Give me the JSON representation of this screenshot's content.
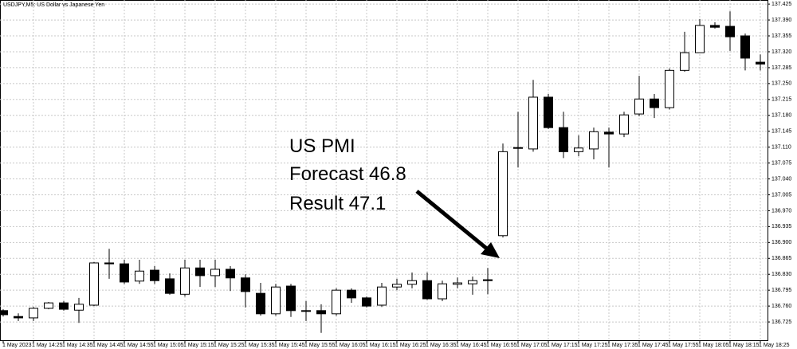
{
  "chart_data": {
    "type": "candlestick",
    "title": "USDJPY,M5:  US Dollar vs Japanese Yen",
    "categories": [
      "1 May 2023",
      null,
      "1 May 14:25",
      null,
      "1 May 14:35",
      null,
      "1 May 14:45",
      null,
      "1 May 14:55",
      null,
      "1 May 15:05",
      null,
      "1 May 15:15",
      null,
      "1 May 15:25",
      null,
      "1 May 15:35",
      null,
      "1 May 15:45",
      null,
      "1 May 15:55",
      null,
      "1 May 16:05",
      null,
      "1 May 16:15",
      null,
      "1 May 16:25",
      null,
      "1 May 16:35",
      null,
      "1 May 16:45",
      null,
      "1 May 16:55",
      null,
      "1 May 17:05",
      null,
      "1 May 17:15",
      null,
      "1 May 17:25",
      null,
      "1 May 17:35",
      null,
      "1 May 17:45",
      null,
      "1 May 17:55",
      null,
      "1 May 18:05",
      null,
      "1 May 18:15",
      null,
      "1 May 18:25"
    ],
    "open": [
      136.75,
      136.737,
      136.734,
      136.755,
      136.767,
      136.751,
      136.762,
      136.855,
      136.853,
      136.815,
      136.839,
      136.82,
      136.786,
      136.844,
      136.827,
      136.841,
      136.822,
      136.788,
      136.743,
      136.804,
      136.75,
      136.75,
      136.743,
      136.795,
      136.778,
      136.762,
      136.802,
      136.808,
      136.816,
      136.776,
      136.808,
      136.809,
      136.818,
      136.915,
      137.109,
      137.106,
      137.22,
      137.153,
      137.1,
      137.106,
      137.143,
      137.139,
      137.183,
      137.216,
      137.197,
      137.279,
      137.318,
      137.378,
      137.376,
      137.355,
      137.297
    ],
    "high": [
      136.753,
      136.744,
      136.758,
      136.769,
      136.771,
      136.778,
      136.857,
      136.886,
      136.862,
      136.862,
      136.848,
      136.832,
      136.862,
      136.862,
      136.862,
      136.848,
      136.83,
      136.811,
      136.809,
      136.809,
      136.771,
      136.764,
      136.799,
      136.799,
      136.781,
      136.811,
      136.82,
      136.834,
      136.834,
      136.816,
      136.823,
      136.825,
      136.844,
      137.118,
      137.188,
      137.258,
      137.227,
      137.188,
      137.136,
      137.153,
      137.153,
      137.188,
      137.267,
      137.227,
      137.283,
      137.364,
      137.392,
      137.385,
      137.409,
      137.36,
      137.314
    ],
    "low": [
      136.737,
      136.727,
      136.727,
      136.753,
      136.75,
      136.723,
      136.76,
      136.82,
      136.809,
      136.809,
      136.809,
      136.785,
      136.781,
      136.802,
      136.802,
      136.793,
      136.757,
      136.739,
      136.739,
      136.736,
      136.727,
      136.701,
      136.739,
      136.767,
      136.757,
      136.758,
      136.795,
      136.799,
      136.774,
      136.771,
      136.799,
      136.785,
      136.786,
      136.911,
      137.065,
      137.1,
      137.15,
      137.086,
      137.09,
      137.083,
      137.065,
      137.132,
      137.178,
      137.174,
      137.193,
      137.276,
      137.318,
      137.371,
      137.322,
      137.279,
      137.279
    ],
    "close": [
      136.741,
      136.734,
      136.755,
      136.767,
      136.753,
      136.764,
      136.855,
      136.853,
      136.813,
      136.837,
      136.816,
      136.788,
      136.844,
      136.827,
      136.841,
      136.822,
      136.792,
      136.743,
      136.802,
      136.75,
      136.749,
      136.743,
      136.795,
      136.778,
      136.76,
      136.802,
      136.808,
      136.816,
      136.776,
      136.809,
      136.811,
      136.816,
      136.816,
      137.1,
      137.108,
      137.22,
      137.153,
      137.1,
      137.108,
      137.144,
      137.139,
      137.181,
      137.216,
      137.197,
      137.279,
      137.318,
      137.378,
      137.374,
      137.353,
      137.306,
      137.293
    ],
    "up_color": "#ffffff",
    "down_color": "#000000",
    "ylim": [
      136.683,
      137.434
    ],
    "yticks": [
      {
        "value": 136.725,
        "label": "136.725"
      },
      {
        "value": 136.76,
        "label": "136.760"
      },
      {
        "value": 136.795,
        "label": "136.795"
      },
      {
        "value": 136.83,
        "label": "136.830"
      },
      {
        "value": 136.865,
        "label": "136.865"
      },
      {
        "value": 136.9,
        "label": "136.900"
      },
      {
        "value": 136.935,
        "label": "136.935"
      },
      {
        "value": 136.97,
        "label": "136.970"
      },
      {
        "value": 137.005,
        "label": "137.005"
      },
      {
        "value": 137.04,
        "label": "137.040"
      },
      {
        "value": 137.075,
        "label": "137.075"
      },
      {
        "value": 137.11,
        "label": "137.110"
      },
      {
        "value": 137.145,
        "label": "137.145"
      },
      {
        "value": 137.18,
        "label": "137.180"
      },
      {
        "value": 137.215,
        "label": "137.215"
      },
      {
        "value": 137.25,
        "label": "137.250"
      },
      {
        "value": 137.285,
        "label": "137.285"
      },
      {
        "value": 137.32,
        "label": "137.320"
      },
      {
        "value": 137.355,
        "label": "137.355"
      },
      {
        "value": 137.39,
        "label": "137.390"
      },
      {
        "value": 137.425,
        "label": "137.425"
      }
    ],
    "grid": true,
    "annotations": [
      "US PMI",
      "Forecast 46.8",
      "Result 47.1"
    ]
  }
}
